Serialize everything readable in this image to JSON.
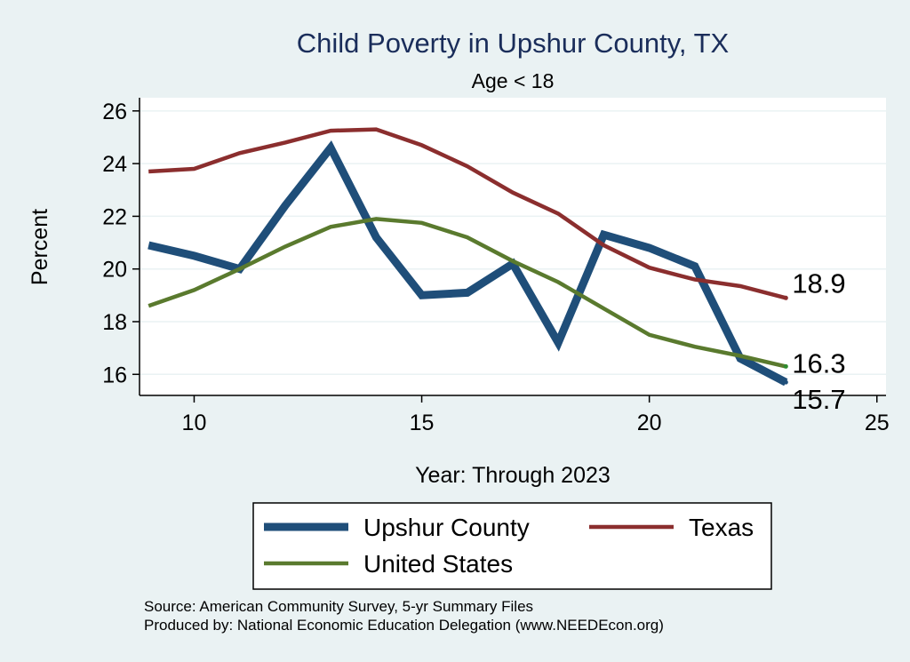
{
  "chart_data": {
    "type": "line",
    "title": "Child Poverty in Upshur County, TX",
    "subtitle": "Age < 18",
    "xlabel": "Year: Through 2023",
    "ylabel": "Percent",
    "xlim": [
      8.8,
      25.2
    ],
    "ylim": [
      15.2,
      26.5
    ],
    "xticks": [
      "10",
      "15",
      "20",
      "25"
    ],
    "yticks": [
      "16",
      "18",
      "20",
      "22",
      "24",
      "26"
    ],
    "grid": true,
    "legend_position": "bottom",
    "series": [
      {
        "name": "Upshur County",
        "color": "#1f4e79",
        "x": [
          9,
          10,
          11,
          12,
          13,
          14,
          15,
          16,
          17,
          18,
          19,
          20,
          21,
          22,
          23
        ],
        "values": [
          20.9,
          20.5,
          20.0,
          22.4,
          24.6,
          21.2,
          19.0,
          19.1,
          20.2,
          17.2,
          21.3,
          20.8,
          20.1,
          16.6,
          15.7
        ],
        "end_label": "15.7"
      },
      {
        "name": "Texas",
        "color": "#8b2e2e",
        "x": [
          9,
          10,
          11,
          12,
          13,
          14,
          15,
          16,
          17,
          18,
          19,
          20,
          21,
          22,
          23
        ],
        "values": [
          23.7,
          23.8,
          24.4,
          24.8,
          25.25,
          25.3,
          24.7,
          23.9,
          22.9,
          22.1,
          20.9,
          20.05,
          19.6,
          19.35,
          18.9
        ],
        "end_label": "18.9"
      },
      {
        "name": "United States",
        "color": "#5a7a2e",
        "x": [
          9,
          10,
          11,
          12,
          13,
          14,
          15,
          16,
          17,
          18,
          19,
          20,
          21,
          22,
          23
        ],
        "values": [
          18.6,
          19.2,
          20.0,
          20.85,
          21.6,
          21.9,
          21.75,
          21.2,
          20.3,
          19.5,
          18.5,
          17.5,
          17.05,
          16.7,
          16.3
        ],
        "end_label": "16.3"
      }
    ]
  },
  "notes": {
    "source": "Source: American Community Survey, 5-yr Summary Files",
    "produced": "Produced by: National Economic Education Delegation (www.NEEDEcon.org)"
  }
}
